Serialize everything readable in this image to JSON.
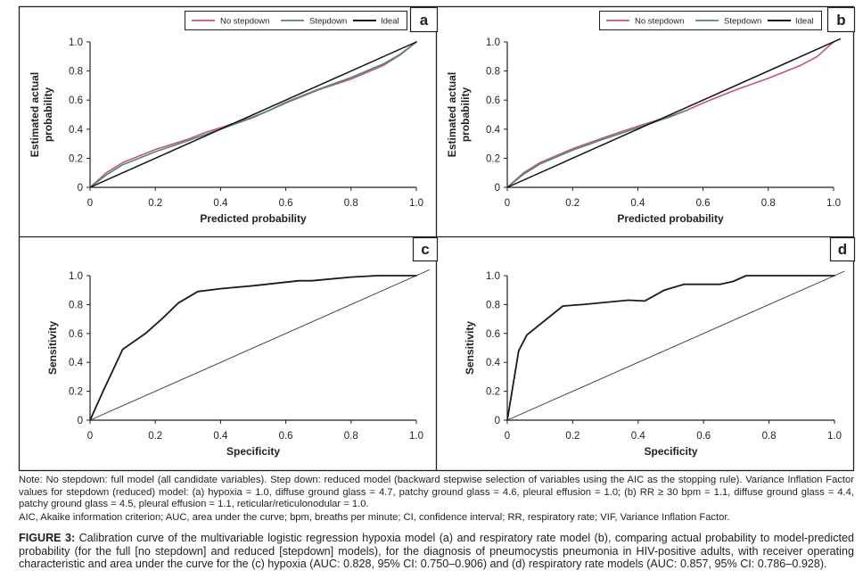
{
  "figure": {
    "label": "FIGURE 3:",
    "caption": "Calibration curve of the multivariable logistic regression hypoxia model (a) and respiratory rate model (b), comparing actual probability to model-predicted probability (for the full [no stepdown] and reduced [stepdown] models), for the diagnosis of pneumocystis pneumonia in HIV-positive adults, with receiver operating characteristic and area under the curve for the (c) hypoxia (AUC: 0.828, 95% CI: 0.750–0.906) and (d) respiratory rate models (AUC: 0.857, 95% CI: 0.786–0.928).",
    "note": "Note: No stepdown: full model (all candidate variables). Step down: reduced model (backward stepwise selection of variables using the AIC as the stopping rule). Variance Inflation Factor values for stepdown (reduced) model: (a) hypoxia = 1.0, diffuse ground glass = 4.7, patchy ground glass = 4.6, pleural effusion = 1.0; (b) RR ≥ 30 bpm = 1.1, diffuse ground glass = 4.4, patchy ground glass = 4.5, pleural effusion = 1.1, reticular/reticulonodular = 1.0.",
    "abbreviations": "AIC, Akaike information criterion; AUC, area under the curve; bpm, breaths per minute; CI, confidence interval; RR, respiratory rate; VIF, Variance Inflation Factor."
  },
  "colors": {
    "no_stepdown": "#c8566a",
    "stepdown": "#4f8a78",
    "ideal": "#111111",
    "roc": "#1a1a1a",
    "reference": "#333333",
    "frame": "#231f20"
  },
  "chart_data": [
    {
      "panel": "a",
      "type": "line",
      "title": "",
      "xlabel": "Predicted probability",
      "ylabel": "Estimated actual probability",
      "xlim": [
        0,
        1.0
      ],
      "ylim": [
        0,
        1.0
      ],
      "xticks": [
        "0",
        "0.2",
        "0.4",
        "0.6",
        "0.8",
        "1.0"
      ],
      "yticks": [
        "0",
        "0.2",
        "0.4",
        "0.6",
        "0.8",
        "1.0"
      ],
      "grid": false,
      "legend": "top-right",
      "series": [
        {
          "name": "No stepdown",
          "color_key": "no_stepdown",
          "x": [
            0,
            0.05,
            0.1,
            0.2,
            0.3,
            0.35,
            0.4,
            0.5,
            0.55,
            0.6,
            0.7,
            0.8,
            0.9,
            0.95,
            1.0
          ],
          "y": [
            0,
            0.1,
            0.17,
            0.26,
            0.33,
            0.375,
            0.41,
            0.485,
            0.53,
            0.58,
            0.67,
            0.745,
            0.84,
            0.91,
            1.0
          ]
        },
        {
          "name": "Stepdown",
          "color_key": "stepdown",
          "x": [
            0,
            0.05,
            0.1,
            0.2,
            0.3,
            0.4,
            0.5,
            0.55,
            0.6,
            0.7,
            0.8,
            0.9,
            0.95,
            1.0
          ],
          "y": [
            0,
            0.085,
            0.155,
            0.245,
            0.32,
            0.4,
            0.48,
            0.53,
            0.585,
            0.675,
            0.755,
            0.85,
            0.915,
            1.0
          ]
        },
        {
          "name": "Ideal",
          "color_key": "ideal",
          "x": [
            0,
            1.0
          ],
          "y": [
            0,
            1.0
          ]
        }
      ]
    },
    {
      "panel": "b",
      "type": "line",
      "title": "",
      "xlabel": "Predicted probability",
      "ylabel": "Estimated actual probability",
      "xlim": [
        0,
        1.0
      ],
      "ylim": [
        0,
        1.0
      ],
      "xticks": [
        "0",
        "0.2",
        "0.4",
        "0.6",
        "0.8",
        "1.0"
      ],
      "yticks": [
        "0",
        "0.2",
        "0.4",
        "0.6",
        "0.8",
        "1.0"
      ],
      "grid": false,
      "legend": "top-right",
      "series": [
        {
          "name": "No stepdown",
          "color_key": "no_stepdown",
          "x": [
            0,
            0.05,
            0.1,
            0.2,
            0.3,
            0.4,
            0.5,
            0.55,
            0.6,
            0.7,
            0.8,
            0.9,
            0.95,
            1.0
          ],
          "y": [
            0,
            0.1,
            0.17,
            0.265,
            0.345,
            0.42,
            0.49,
            0.53,
            0.58,
            0.67,
            0.75,
            0.84,
            0.9,
            1.0
          ]
        },
        {
          "name": "Stepdown",
          "color_key": "stepdown",
          "x": [
            0,
            0.05,
            0.1,
            0.2,
            0.3,
            0.4,
            0.5,
            0.55
          ],
          "y": [
            0,
            0.09,
            0.16,
            0.255,
            0.335,
            0.41,
            0.485,
            0.53
          ]
        },
        {
          "name": "Ideal",
          "color_key": "ideal",
          "x": [
            0,
            1.02
          ],
          "y": [
            0,
            1.02
          ]
        }
      ]
    },
    {
      "panel": "c",
      "type": "line",
      "title": "",
      "xlabel": "Specificity",
      "ylabel": "Sensitivity",
      "xlim": [
        0,
        1.0
      ],
      "ylim": [
        0,
        1.0
      ],
      "xticks": [
        "0",
        "0.2",
        "0.4",
        "0.6",
        "0.8",
        "1.0"
      ],
      "yticks": [
        "0",
        "0.2",
        "0.4",
        "0.6",
        "0.8",
        "1.0"
      ],
      "grid": false,
      "legend": "none",
      "series": [
        {
          "name": "ROC",
          "color_key": "roc",
          "x": [
            0,
            0.04,
            0.1,
            0.17,
            0.22,
            0.27,
            0.33,
            0.4,
            0.5,
            0.64,
            0.68,
            0.8,
            0.88,
            1.0
          ],
          "y": [
            0,
            0.2,
            0.49,
            0.6,
            0.7,
            0.81,
            0.89,
            0.91,
            0.93,
            0.965,
            0.965,
            0.99,
            1.0,
            1.0
          ]
        },
        {
          "name": "Reference",
          "color_key": "reference",
          "x": [
            0,
            1.04
          ],
          "y": [
            0,
            1.04
          ]
        }
      ]
    },
    {
      "panel": "d",
      "type": "line",
      "title": "",
      "xlabel": "Specificity",
      "ylabel": "Sensitivity",
      "xlim": [
        0,
        1.0
      ],
      "ylim": [
        0,
        1.0
      ],
      "xticks": [
        "0",
        "0.2",
        "0.4",
        "0.6",
        "0.8",
        "1.0"
      ],
      "yticks": [
        "0",
        "0.2",
        "0.4",
        "0.6",
        "0.8",
        "1.0"
      ],
      "grid": false,
      "legend": "none",
      "series": [
        {
          "name": "ROC",
          "color_key": "roc",
          "x": [
            0,
            0.035,
            0.06,
            0.17,
            0.23,
            0.37,
            0.42,
            0.48,
            0.54,
            0.65,
            0.69,
            0.73,
            1.0
          ],
          "y": [
            0,
            0.48,
            0.59,
            0.79,
            0.8,
            0.83,
            0.825,
            0.9,
            0.94,
            0.94,
            0.96,
            1.0,
            1.0
          ]
        },
        {
          "name": "Reference",
          "color_key": "reference",
          "x": [
            0,
            1.03
          ],
          "y": [
            0,
            1.03
          ]
        }
      ]
    }
  ],
  "legend": {
    "items": [
      "No stepdown",
      "Stepdown",
      "Ideal"
    ]
  }
}
